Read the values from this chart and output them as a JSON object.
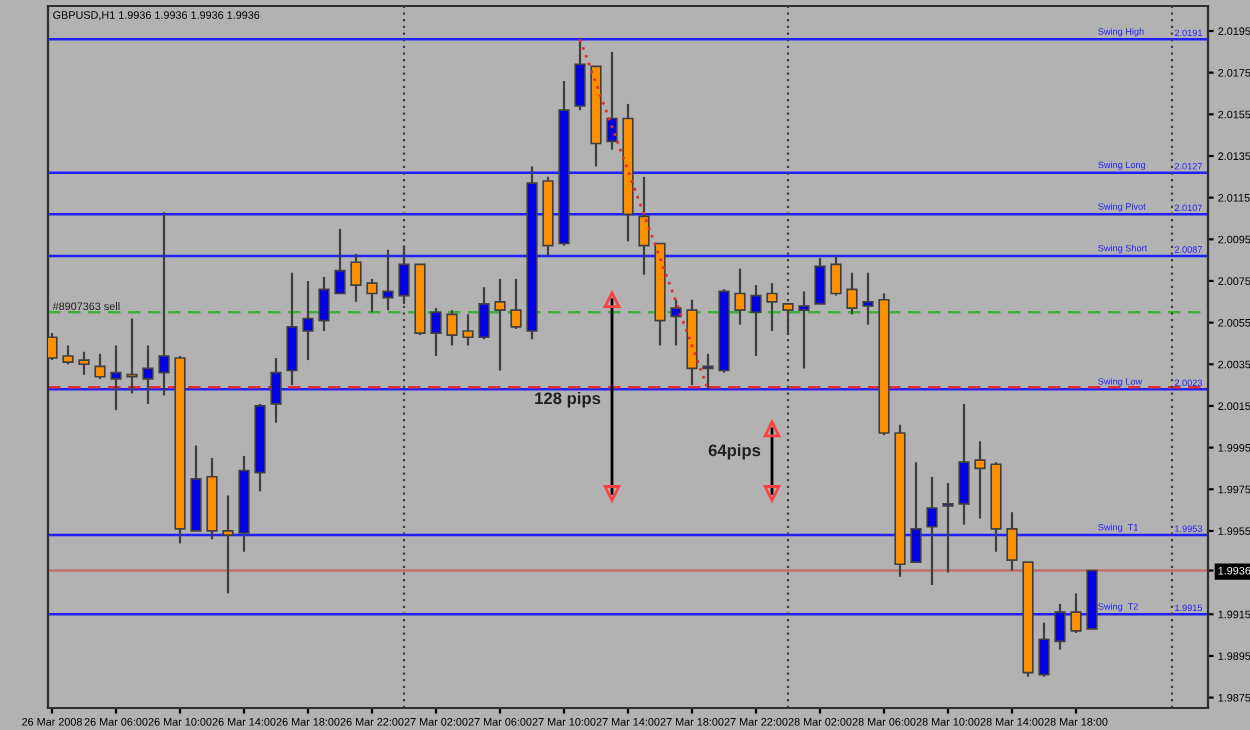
{
  "chart_data": {
    "type": "candlestick",
    "title": "GBPUSD,H1 1.9936 1.9936 1.9936 1.9936",
    "x": [
      "2008-03-26T02:00",
      "2008-03-26T03:00",
      "2008-03-26T04:00",
      "2008-03-26T05:00",
      "2008-03-26T06:00",
      "2008-03-26T07:00",
      "2008-03-26T08:00",
      "2008-03-26T09:00",
      "2008-03-26T10:00",
      "2008-03-26T11:00",
      "2008-03-26T12:00",
      "2008-03-26T13:00",
      "2008-03-26T14:00",
      "2008-03-26T15:00",
      "2008-03-26T16:00",
      "2008-03-26T17:00",
      "2008-03-26T18:00",
      "2008-03-26T19:00",
      "2008-03-26T20:00",
      "2008-03-26T21:00",
      "2008-03-26T22:00",
      "2008-03-26T23:00",
      "2008-03-27T00:00",
      "2008-03-27T01:00",
      "2008-03-27T02:00",
      "2008-03-27T03:00",
      "2008-03-27T04:00",
      "2008-03-27T05:00",
      "2008-03-27T06:00",
      "2008-03-27T07:00",
      "2008-03-27T08:00",
      "2008-03-27T09:00",
      "2008-03-27T10:00",
      "2008-03-27T11:00",
      "2008-03-27T12:00",
      "2008-03-27T13:00",
      "2008-03-27T14:00",
      "2008-03-27T15:00",
      "2008-03-27T16:00",
      "2008-03-27T17:00",
      "2008-03-27T18:00",
      "2008-03-27T19:00",
      "2008-03-27T20:00",
      "2008-03-27T21:00",
      "2008-03-27T22:00",
      "2008-03-27T23:00",
      "2008-03-28T00:00",
      "2008-03-28T01:00",
      "2008-03-28T02:00",
      "2008-03-28T03:00",
      "2008-03-28T04:00",
      "2008-03-28T05:00",
      "2008-03-28T06:00",
      "2008-03-28T07:00",
      "2008-03-28T08:00",
      "2008-03-28T09:00",
      "2008-03-28T10:00",
      "2008-03-28T11:00",
      "2008-03-28T12:00",
      "2008-03-28T13:00",
      "2008-03-28T14:00",
      "2008-03-28T15:00",
      "2008-03-28T16:00",
      "2008-03-28T17:00",
      "2008-03-28T18:00",
      "2008-03-28T19:00"
    ],
    "ohlc": [
      [
        2.0048,
        2.005,
        2.0037,
        2.0038
      ],
      [
        2.0039,
        2.0044,
        2.0035,
        2.0036
      ],
      [
        2.0037,
        2.0041,
        2.003,
        2.0035
      ],
      [
        2.0034,
        2.004,
        2.0028,
        2.0029
      ],
      [
        2.0028,
        2.0044,
        2.0013,
        2.0031
      ],
      [
        2.003,
        2.0057,
        2.0021,
        2.0029
      ],
      [
        2.0028,
        2.0044,
        2.0016,
        2.0033
      ],
      [
        2.0031,
        2.0108,
        2.002,
        2.0039
      ],
      [
        2.0038,
        2.0039,
        1.9949,
        1.9956
      ],
      [
        1.9955,
        1.9996,
        1.9955,
        1.998
      ],
      [
        1.9981,
        1.999,
        1.9951,
        1.9955
      ],
      [
        1.9955,
        1.9972,
        1.9925,
        1.9953
      ],
      [
        1.9954,
        1.9991,
        1.9945,
        1.9984
      ],
      [
        1.9983,
        2.0016,
        1.9974,
        2.0015
      ],
      [
        2.0016,
        2.0038,
        2.0007,
        2.0031
      ],
      [
        2.0032,
        2.0079,
        2.0025,
        2.0053
      ],
      [
        2.0051,
        2.0075,
        2.0037,
        2.0057
      ],
      [
        2.0056,
        2.0077,
        2.0051,
        2.0071
      ],
      [
        2.0069,
        2.01,
        2.0069,
        2.008
      ],
      [
        2.0084,
        2.0088,
        2.0065,
        2.0073
      ],
      [
        2.0074,
        2.0076,
        2.006,
        2.0069
      ],
      [
        2.0067,
        2.009,
        2.0061,
        2.007
      ],
      [
        2.0068,
        2.0092,
        2.0064,
        2.0083
      ],
      [
        2.0083,
        2.0083,
        2.0049,
        2.005
      ],
      [
        2.005,
        2.0062,
        2.0039,
        2.006
      ],
      [
        2.0059,
        2.0061,
        2.0044,
        2.0049
      ],
      [
        2.0051,
        2.0059,
        2.0044,
        2.0048
      ],
      [
        2.0048,
        2.0072,
        2.0047,
        2.0064
      ],
      [
        2.0065,
        2.0076,
        2.0032,
        2.0061
      ],
      [
        2.0061,
        2.0076,
        2.0052,
        2.0053
      ],
      [
        2.0051,
        2.013,
        2.0047,
        2.0122
      ],
      [
        2.0123,
        2.0125,
        2.0087,
        2.0092
      ],
      [
        2.0093,
        2.0171,
        2.0092,
        2.0157
      ],
      [
        2.0159,
        2.0191,
        2.0157,
        2.0179
      ],
      [
        2.0178,
        2.0178,
        2.013,
        2.0141
      ],
      [
        2.0142,
        2.0185,
        2.0138,
        2.0153
      ],
      [
        2.0153,
        2.016,
        2.0094,
        2.0107
      ],
      [
        2.0106,
        2.0125,
        2.0078,
        2.0092
      ],
      [
        2.0093,
        2.0093,
        2.0044,
        2.0056
      ],
      [
        2.0058,
        2.0066,
        2.0044,
        2.0062
      ],
      [
        2.0061,
        2.0066,
        2.0025,
        2.0033
      ],
      [
        2.0033,
        2.004,
        2.0023,
        2.0034
      ],
      [
        2.0032,
        2.0071,
        2.0031,
        2.007
      ],
      [
        2.0069,
        2.0081,
        2.0054,
        2.0061
      ],
      [
        2.006,
        2.0073,
        2.0039,
        2.0068
      ],
      [
        2.0069,
        2.0074,
        2.0051,
        2.0065
      ],
      [
        2.0064,
        2.0064,
        2.0049,
        2.0061
      ],
      [
        2.0061,
        2.007,
        2.0033,
        2.0063
      ],
      [
        2.0064,
        2.0086,
        2.0064,
        2.0082
      ],
      [
        2.0083,
        2.0087,
        2.0068,
        2.0069
      ],
      [
        2.0071,
        2.0079,
        2.0059,
        2.0062
      ],
      [
        2.0063,
        2.0079,
        2.0054,
        2.0065
      ],
      [
        2.0066,
        2.0069,
        2.0001,
        2.0002
      ],
      [
        2.0002,
        2.0006,
        1.9933,
        1.9939
      ],
      [
        1.994,
        1.9988,
        1.994,
        1.9956
      ],
      [
        1.9957,
        1.9981,
        1.9929,
        1.9966
      ],
      [
        1.9967,
        1.9978,
        1.9935,
        1.9968
      ],
      [
        1.9968,
        2.0016,
        1.9958,
        1.9988
      ],
      [
        1.9989,
        1.9998,
        1.9961,
        1.9985
      ],
      [
        1.9987,
        1.9988,
        1.9945,
        1.9956
      ],
      [
        1.9956,
        1.9964,
        1.9936,
        1.9941
      ],
      [
        1.994,
        1.994,
        1.9885,
        1.9887
      ],
      [
        1.9886,
        1.9911,
        1.9885,
        1.9903
      ],
      [
        1.9902,
        1.992,
        1.9898,
        1.9916
      ],
      [
        1.9916,
        1.9925,
        1.9906,
        1.9907
      ],
      [
        1.9908,
        1.9936,
        1.9908,
        1.9936
      ]
    ],
    "colors": [
      "#ff9000",
      "#ff9000",
      "#ff9000",
      "#ff9000",
      "#0000e0",
      "#ff9000",
      "#0000e0",
      "#0000e0",
      "#ff9000",
      "#0000e0",
      "#ff9000",
      "#ff9000",
      "#0000e0",
      "#0000e0",
      "#0000e0",
      "#0000e0",
      "#0000e0",
      "#0000e0",
      "#0000e0",
      "#ff9000",
      "#ff9000",
      "#0000e0",
      "#0000e0",
      "#ff9000",
      "#0000e0",
      "#ff9000",
      "#ff9000",
      "#0000e0",
      "#ff9000",
      "#ff9000",
      "#0000e0",
      "#ff9000",
      "#0000e0",
      "#0000e0",
      "#ff9000",
      "#0000e0",
      "#ff9000",
      "#ff9000",
      "#ff9000",
      "#0000e0",
      "#ff9000",
      "#0000e0",
      "#0000e0",
      "#ff9000",
      "#0000e0",
      "#ff9000",
      "#ff9000",
      "#0000e0",
      "#0000e0",
      "#ff9000",
      "#ff9000",
      "#0000e0",
      "#ff9000",
      "#ff9000",
      "#0000e0",
      "#0000e0",
      "#0000e0",
      "#0000e0",
      "#ff9000",
      "#ff9000",
      "#ff9000",
      "#ff9000",
      "#0000e0",
      "#0000e0",
      "#ff9000",
      "#0000e0"
    ],
    "series": [
      {
        "type": "line",
        "x": [
          "2008-03-27T11:00",
          "2008-03-27T19:00"
        ],
        "values": [
          2.0191,
          2.0023
        ],
        "color": "#e03030",
        "line_style": "dotted"
      },
      {
        "type": "line",
        "x": [
          "2008-03-27T13:00",
          "2008-03-27T13:00"
        ],
        "values": [
          2.0066,
          1.9973
        ],
        "color": "#000000",
        "line_style": "solid",
        "marker": "triangle"
      },
      {
        "type": "line",
        "x": [
          "2008-03-27T23:00",
          "2008-03-27T23:00"
        ],
        "values": [
          2.0004,
          1.9973
        ],
        "color": "#000000",
        "line_style": "solid",
        "marker": "triangle"
      }
    ],
    "annotations": [
      {
        "text": "128 pips",
        "x": "2008-03-27T13:00",
        "y": 2.0018
      },
      {
        "text": "64pips",
        "x": "2008-03-27T23:00",
        "y": 1.9993
      },
      {
        "text": "2.0191",
        "x": "2008-03-29T02:15",
        "y": 2.0191
      },
      {
        "text": "2.0127",
        "x": "2008-03-29T02:15",
        "y": 2.0127
      },
      {
        "text": "2.0107",
        "x": "2008-03-29T02:15",
        "y": 2.0107
      },
      {
        "text": "2.0087",
        "x": "2008-03-29T02:15",
        "y": 2.0087
      },
      {
        "text": "2.0023",
        "x": "2008-03-29T02:15",
        "y": 2.0023
      },
      {
        "text": "1.9953",
        "x": "2008-03-29T02:15",
        "y": 1.9953
      },
      {
        "text": "1.9915",
        "x": "2008-03-29T02:15",
        "y": 1.9915
      }
    ],
    "ref_lines": [
      {
        "axis": "y",
        "value": 2.0191,
        "label": "Swing High",
        "color": "#2020ff",
        "line_style": "solid"
      },
      {
        "axis": "y",
        "value": 2.0127,
        "label": "Swing Long",
        "color": "#2020ff",
        "line_style": "solid"
      },
      {
        "axis": "y",
        "value": 2.0107,
        "label": "Swing Pivot",
        "color": "#2020ff",
        "line_style": "solid"
      },
      {
        "axis": "y",
        "value": 2.0087,
        "label": "Swing Short",
        "color": "#2020ff",
        "line_style": "solid"
      },
      {
        "axis": "y",
        "value": 2.0023,
        "label": "Swing Low",
        "color": "#2020ff",
        "line_style": "solid"
      },
      {
        "axis": "y",
        "value": 1.9953,
        "label": "Swing  T1",
        "color": "#2020ff",
        "line_style": "solid"
      },
      {
        "axis": "y",
        "value": 1.9915,
        "label": "Swing  T2",
        "color": "#2020ff",
        "line_style": "solid"
      },
      {
        "axis": "y",
        "value": 2.006,
        "label": "#8907363 sell",
        "color": "#40b040",
        "line_style": "dashed"
      },
      {
        "axis": "y",
        "value": 2.0024,
        "color": "#e03030",
        "line_style": "dashed"
      },
      {
        "axis": "y",
        "value": 1.9936,
        "color": "#c07070",
        "line_style": "solid"
      },
      {
        "axis": "x",
        "value": "2008-03-27T00:00",
        "color": "#404040",
        "line_style": "dotted"
      },
      {
        "axis": "x",
        "value": "2008-03-28T00:00",
        "color": "#404040",
        "line_style": "dotted"
      },
      {
        "axis": "x",
        "value": "2008-03-29T00:00",
        "color": "#404040",
        "line_style": "dotted"
      }
    ],
    "xlim": [
      "2008-03-26T01:45",
      "2008-03-29T02:15"
    ],
    "xticks": [
      {
        "value": "2008-03-26T02:00",
        "label": "26 Mar 2008"
      },
      {
        "value": "2008-03-26T06:00",
        "label": "26 Mar 06:00"
      },
      {
        "value": "2008-03-26T10:00",
        "label": "26 Mar 10:00"
      },
      {
        "value": "2008-03-26T14:00",
        "label": "26 Mar 14:00"
      },
      {
        "value": "2008-03-26T18:00",
        "label": "26 Mar 18:00"
      },
      {
        "value": "2008-03-26T22:00",
        "label": "26 Mar 22:00"
      },
      {
        "value": "2008-03-27T02:00",
        "label": "27 Mar 02:00"
      },
      {
        "value": "2008-03-27T06:00",
        "label": "27 Mar 06:00"
      },
      {
        "value": "2008-03-27T10:00",
        "label": "27 Mar 10:00"
      },
      {
        "value": "2008-03-27T14:00",
        "label": "27 Mar 14:00"
      },
      {
        "value": "2008-03-27T18:00",
        "label": "27 Mar 18:00"
      },
      {
        "value": "2008-03-27T22:00",
        "label": "27 Mar 22:00"
      },
      {
        "value": "2008-03-28T02:00",
        "label": "28 Mar 02:00"
      },
      {
        "value": "2008-03-28T06:00",
        "label": "28 Mar 06:00"
      },
      {
        "value": "2008-03-28T10:00",
        "label": "28 Mar 10:00"
      },
      {
        "value": "2008-03-28T14:00",
        "label": "28 Mar 14:00"
      },
      {
        "value": "2008-03-28T18:00",
        "label": "28 Mar 18:00"
      }
    ],
    "ylim": [
      1.987,
      2.0207
    ],
    "yticks": [
      2.0195,
      2.0175,
      2.0155,
      2.0135,
      2.0115,
      2.0095,
      2.0075,
      2.0055,
      2.0035,
      2.0015,
      1.9995,
      1.9975,
      1.9955,
      {
        "value": 1.9936,
        "label": "1.9936"
      },
      1.9915,
      1.9895,
      1.9875
    ]
  }
}
